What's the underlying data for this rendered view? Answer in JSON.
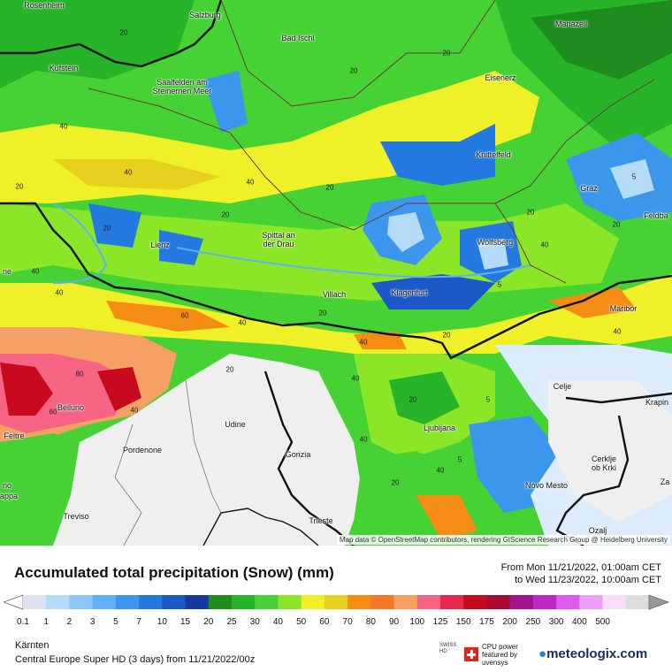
{
  "map": {
    "attribution": "Map data © OpenStreetMap contributors, rendering GIScience Research Group @ Heidelberg University",
    "places": [
      {
        "name": "Rosenheim"
      },
      {
        "name": "Salzburg"
      },
      {
        "name": "Mariazell"
      },
      {
        "name": "Bad Ischl"
      },
      {
        "name": "Kufstein"
      },
      {
        "name": "Saalfelden am Steinernen Meer"
      },
      {
        "name": "Eisenerz"
      },
      {
        "name": "Knittelfeld"
      },
      {
        "name": "Graz"
      },
      {
        "name": "Feldba"
      },
      {
        "name": "Lienz"
      },
      {
        "name": "Spittal an der Drau"
      },
      {
        "name": "Wolfsberg"
      },
      {
        "name": "Villach"
      },
      {
        "name": "Klagenfurt"
      },
      {
        "name": "Maribor"
      },
      {
        "name": "Celje"
      },
      {
        "name": "Krapin"
      },
      {
        "name": "Belluno"
      },
      {
        "name": "Udine"
      },
      {
        "name": "Ljubljana"
      },
      {
        "name": "Feltre"
      },
      {
        "name": "Pordenone"
      },
      {
        "name": "Gorizia"
      },
      {
        "name": "Cerklje ob Krki"
      },
      {
        "name": "Novo Mesto"
      },
      {
        "name": "Za"
      },
      {
        "name": "Treviso"
      },
      {
        "name": "Trieste"
      },
      {
        "name": "Ozalj"
      },
      {
        "name": "no"
      },
      {
        "name": "appa"
      },
      {
        "name": "ne"
      }
    ],
    "values": [
      "20",
      "40",
      "20",
      "20",
      "40",
      "20",
      "40",
      "20",
      "20",
      "40",
      "60",
      "40",
      "5",
      "5",
      "20",
      "40",
      "20",
      "40",
      "60",
      "80",
      "40",
      "20",
      "40",
      "20",
      "5",
      "40",
      "20",
      "40",
      "40",
      "20",
      "5",
      "20",
      "40",
      "20"
    ]
  },
  "header": {
    "title": "Accumulated total precipitation (Snow) (mm)",
    "range_from": "From Mon 11/21/2022, 01:00am CET",
    "range_to": "to Wed 11/23/2022, 10:00am CET"
  },
  "legend": {
    "ticks": [
      "0.1",
      "1",
      "2",
      "3",
      "5",
      "7",
      "10",
      "15",
      "20",
      "25",
      "30",
      "40",
      "50",
      "60",
      "70",
      "80",
      "90",
      "100",
      "125",
      "150",
      "175",
      "200",
      "250",
      "300",
      "400",
      "500"
    ],
    "colors": [
      "#e0e0f4",
      "#b4dcf8",
      "#8cc8f8",
      "#60b0f4",
      "#3c96ec",
      "#2479e0",
      "#1b58c8",
      "#143a9e",
      "#1e8c1e",
      "#28b428",
      "#46d234",
      "#8ce628",
      "#f0f028",
      "#e6d21e",
      "#f58c14",
      "#f57828",
      "#f5a064",
      "#f56482",
      "#e6284e",
      "#c80a1e",
      "#aa0a32",
      "#a0148c",
      "#be28c8",
      "#dc5af0",
      "#eea0f8",
      "#f8dcfa",
      "#dcdcdc"
    ]
  },
  "footer": {
    "region": "Kärnten",
    "model_label": "Central Europe Super HD (3 days)",
    "model_from": "from",
    "model_date": "11/21/2022/00z",
    "swiss": "SWISS HD",
    "cpu_power": "CPU power featured by",
    "cpu_vendor": "uvensys",
    "brand": "meteologix.com"
  }
}
